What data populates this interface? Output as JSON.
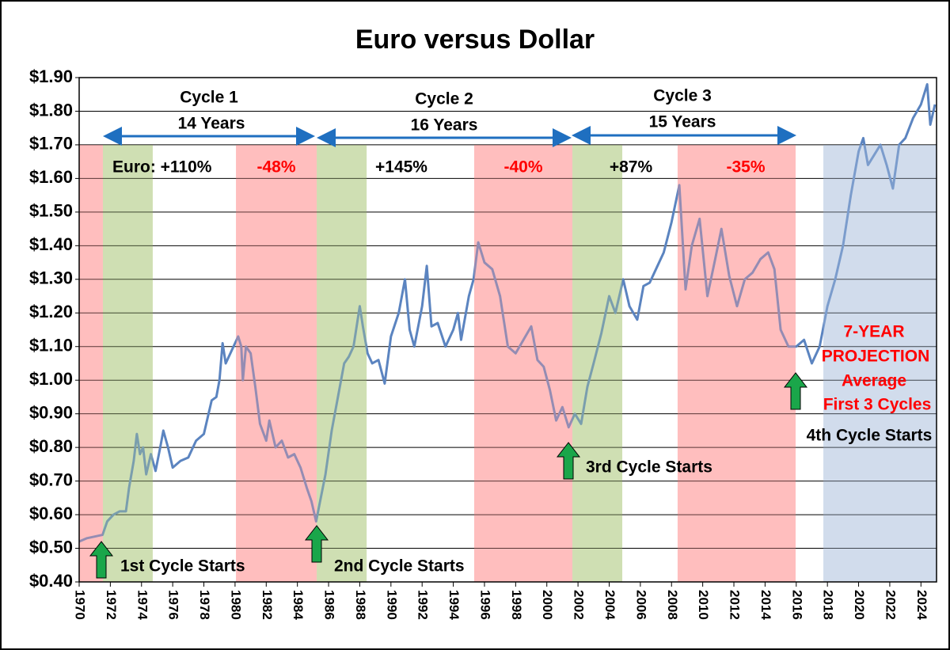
{
  "chart_data": {
    "type": "line",
    "title": "Euro versus Dollar",
    "xlim": [
      1970,
      2025
    ],
    "ylim": [
      0.4,
      1.9
    ],
    "yticks": [
      {
        "value": 0.4,
        "label": "$0.40"
      },
      {
        "value": 0.5,
        "label": "$0.50"
      },
      {
        "value": 0.6,
        "label": "$0.60"
      },
      {
        "value": 0.7,
        "label": "$0.70"
      },
      {
        "value": 0.8,
        "label": "$0.80"
      },
      {
        "value": 0.9,
        "label": "$0.90"
      },
      {
        "value": 1.0,
        "label": "$1.00"
      },
      {
        "value": 1.1,
        "label": "$1.10"
      },
      {
        "value": 1.2,
        "label": "$1.20"
      },
      {
        "value": 1.3,
        "label": "$1.30"
      },
      {
        "value": 1.4,
        "label": "$1.40"
      },
      {
        "value": 1.5,
        "label": "$1.50"
      },
      {
        "value": 1.6,
        "label": "$1.60"
      },
      {
        "value": 1.7,
        "label": "$1.70"
      },
      {
        "value": 1.8,
        "label": "$1.80"
      },
      {
        "value": 1.9,
        "label": "$1.90"
      }
    ],
    "xticks": [
      1970,
      1972,
      1974,
      1976,
      1978,
      1980,
      1982,
      1984,
      1986,
      1988,
      1990,
      1992,
      1994,
      1996,
      1998,
      2000,
      2002,
      2004,
      2006,
      2008,
      2010,
      2012,
      2014,
      2016,
      2018,
      2020,
      2022,
      2024
    ],
    "grid": true,
    "bands": [
      {
        "x": [
          1970,
          1971.52
        ],
        "color": "#ff9a9a"
      },
      {
        "x": [
          1971.52,
          1974.72
        ],
        "color": "#b5cf8a"
      },
      {
        "x": [
          1980.06,
          1985.24
        ],
        "color": "#ff9a9a"
      },
      {
        "x": [
          1985.24,
          1988.44
        ],
        "color": "#b5cf8a"
      },
      {
        "x": [
          1995.34,
          2001.64
        ],
        "color": "#ff9a9a"
      },
      {
        "x": [
          2001.64,
          2004.84
        ],
        "color": "#b5cf8a"
      },
      {
        "x": [
          2008.39,
          2015.96
        ],
        "color": "#ff9a9a"
      },
      {
        "x": [
          2017.74,
          2025
        ],
        "color": "#b8c9e2"
      }
    ],
    "series": [
      {
        "color": "#5b84c0",
        "x": [
          1970.0,
          1970.5,
          1971.0,
          1971.5,
          1971.8,
          1972.2,
          1972.6,
          1973.0,
          1973.2,
          1973.5,
          1973.7,
          1973.9,
          1974.1,
          1974.3,
          1974.6,
          1974.9,
          1975.2,
          1975.4,
          1975.7,
          1976.0,
          1976.5,
          1977.0,
          1977.5,
          1978.0,
          1978.5,
          1978.8,
          1979.0,
          1979.2,
          1979.4,
          1979.8,
          1980.2,
          1980.4,
          1980.5,
          1980.7,
          1981.0,
          1981.3,
          1981.6,
          1982.0,
          1982.2,
          1982.6,
          1983.0,
          1983.4,
          1983.8,
          1984.2,
          1984.6,
          1984.9,
          1985.2,
          1985.5,
          1985.8,
          1986.2,
          1986.6,
          1987.0,
          1987.3,
          1987.6,
          1988.0,
          1988.2,
          1988.5,
          1988.8,
          1989.2,
          1989.6,
          1990.0,
          1990.5,
          1990.9,
          1991.2,
          1991.5,
          1992.0,
          1992.3,
          1992.6,
          1993.0,
          1993.5,
          1994.0,
          1994.3,
          1994.5,
          1995.0,
          1995.3,
          1995.6,
          1996.0,
          1996.5,
          1997.0,
          1997.5,
          1998.0,
          1998.5,
          1999.0,
          1999.4,
          1999.8,
          2000.2,
          2000.6,
          2001.0,
          2001.4,
          2001.8,
          2002.2,
          2002.6,
          2003.0,
          2003.5,
          2004.0,
          2004.4,
          2004.9,
          2005.3,
          2005.8,
          2006.2,
          2006.6,
          2007.0,
          2007.5,
          2008.0,
          2008.5,
          2008.9,
          2009.3,
          2009.8,
          2010.3,
          2010.8,
          2011.2,
          2011.7,
          2012.2,
          2012.7,
          2013.2,
          2013.7,
          2014.2,
          2014.6,
          2015.0,
          2015.5,
          2016.0,
          2016.5,
          2017.0,
          2017.5,
          2018.0,
          2018.5,
          2019.0,
          2019.5,
          2020.0,
          2020.3,
          2020.6,
          2021.0,
          2021.4,
          2021.8,
          2022.2,
          2022.6,
          2023.0,
          2023.5,
          2024.0,
          2024.4,
          2024.6,
          2024.9
        ],
        "values": [
          0.52,
          0.53,
          0.535,
          0.54,
          0.58,
          0.6,
          0.61,
          0.61,
          0.68,
          0.76,
          0.84,
          0.78,
          0.8,
          0.72,
          0.78,
          0.73,
          0.8,
          0.85,
          0.8,
          0.74,
          0.76,
          0.77,
          0.82,
          0.84,
          0.94,
          0.95,
          1.0,
          1.11,
          1.05,
          1.09,
          1.13,
          1.1,
          1.0,
          1.1,
          1.08,
          0.98,
          0.87,
          0.82,
          0.88,
          0.8,
          0.82,
          0.77,
          0.78,
          0.74,
          0.68,
          0.64,
          0.58,
          0.65,
          0.72,
          0.85,
          0.95,
          1.05,
          1.07,
          1.1,
          1.22,
          1.16,
          1.08,
          1.05,
          1.06,
          0.99,
          1.13,
          1.2,
          1.3,
          1.15,
          1.1,
          1.22,
          1.34,
          1.16,
          1.17,
          1.1,
          1.15,
          1.2,
          1.12,
          1.25,
          1.3,
          1.41,
          1.35,
          1.33,
          1.25,
          1.1,
          1.08,
          1.12,
          1.16,
          1.06,
          1.04,
          0.97,
          0.88,
          0.92,
          0.86,
          0.9,
          0.87,
          0.98,
          1.05,
          1.14,
          1.25,
          1.2,
          1.3,
          1.22,
          1.18,
          1.28,
          1.29,
          1.33,
          1.38,
          1.47,
          1.58,
          1.27,
          1.4,
          1.48,
          1.25,
          1.36,
          1.45,
          1.31,
          1.22,
          1.3,
          1.32,
          1.36,
          1.38,
          1.33,
          1.15,
          1.1,
          1.1,
          1.12,
          1.05,
          1.1,
          1.22,
          1.3,
          1.4,
          1.55,
          1.68,
          1.72,
          1.64,
          1.67,
          1.7,
          1.64,
          1.57,
          1.7,
          1.72,
          1.78,
          1.82,
          1.88,
          1.76,
          1.82
        ]
      }
    ],
    "annotations": {
      "cycle1": "Cycle 1",
      "years1": "14 Years",
      "cycle2": "Cycle 2",
      "years2": "16 Years",
      "cycle3": "Cycle 3",
      "years3": "15 Years",
      "euro_gain1": "Euro: +110%",
      "loss1": "-48%",
      "gain2": "+145%",
      "loss2": "-40%",
      "gain3": "+87%",
      "loss3": "-35%",
      "start1": "1st Cycle Starts",
      "start2": "2nd Cycle Starts",
      "start3": "3rd Cycle Starts",
      "start4": "4th Cycle Starts",
      "proj1": "7-YEAR",
      "proj2": "PROJECTION",
      "proj3": "Average",
      "proj4": "First 3 Cycles"
    }
  }
}
